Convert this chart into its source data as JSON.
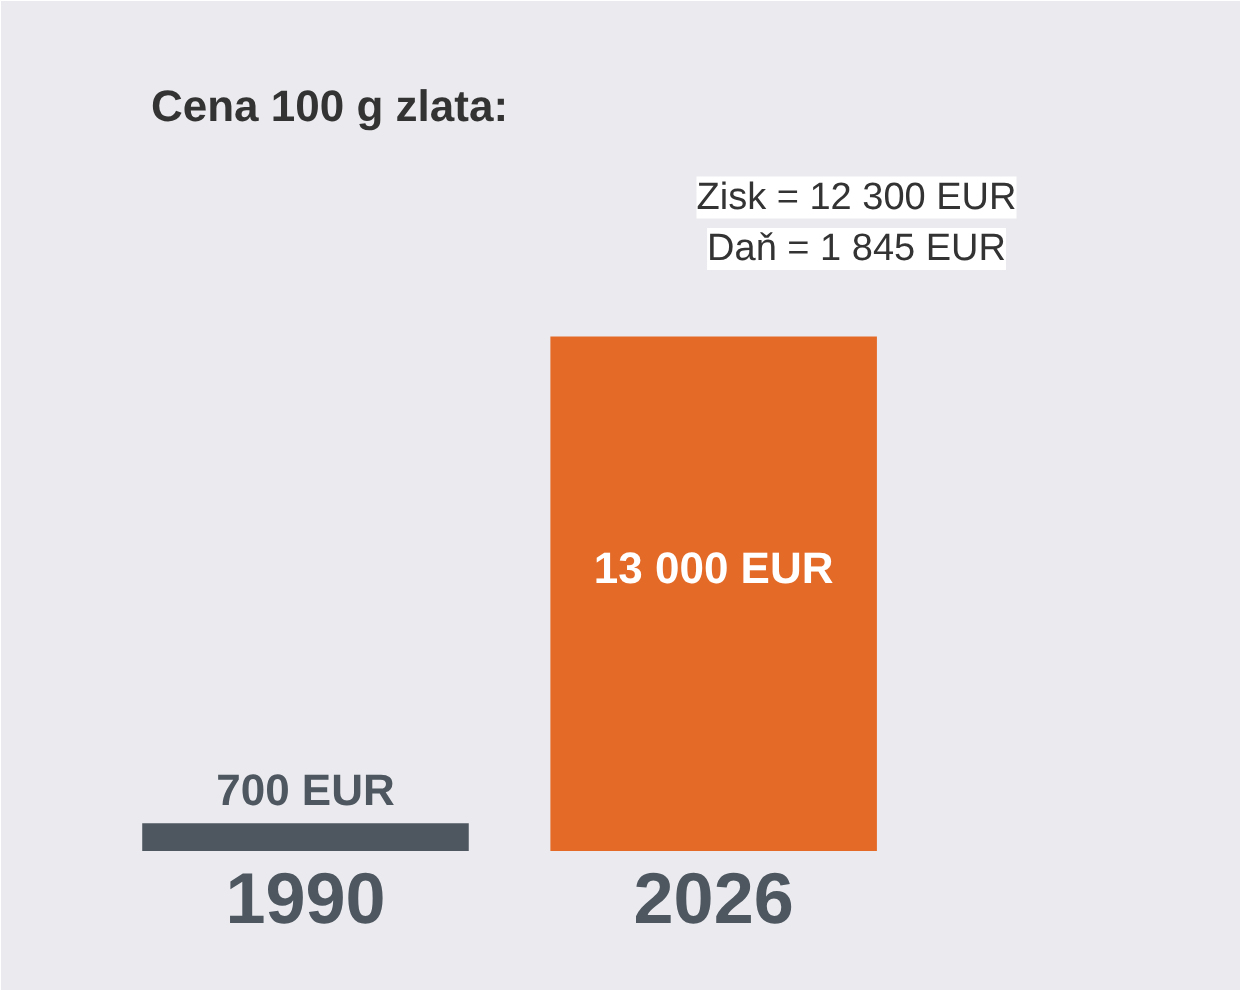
{
  "chart_data": {
    "type": "bar",
    "title": "Cena 100 g zlata:",
    "categories": [
      "1990",
      "2026"
    ],
    "values": [
      700,
      13000
    ],
    "colors": [
      "#4e5760",
      "#e46a28"
    ],
    "value_labels": [
      "700 EUR",
      "13 000 EUR"
    ],
    "annotations": [
      "Zisk = 12 300 EUR",
      "Daň = 1 845 EUR"
    ],
    "grid": false
  }
}
